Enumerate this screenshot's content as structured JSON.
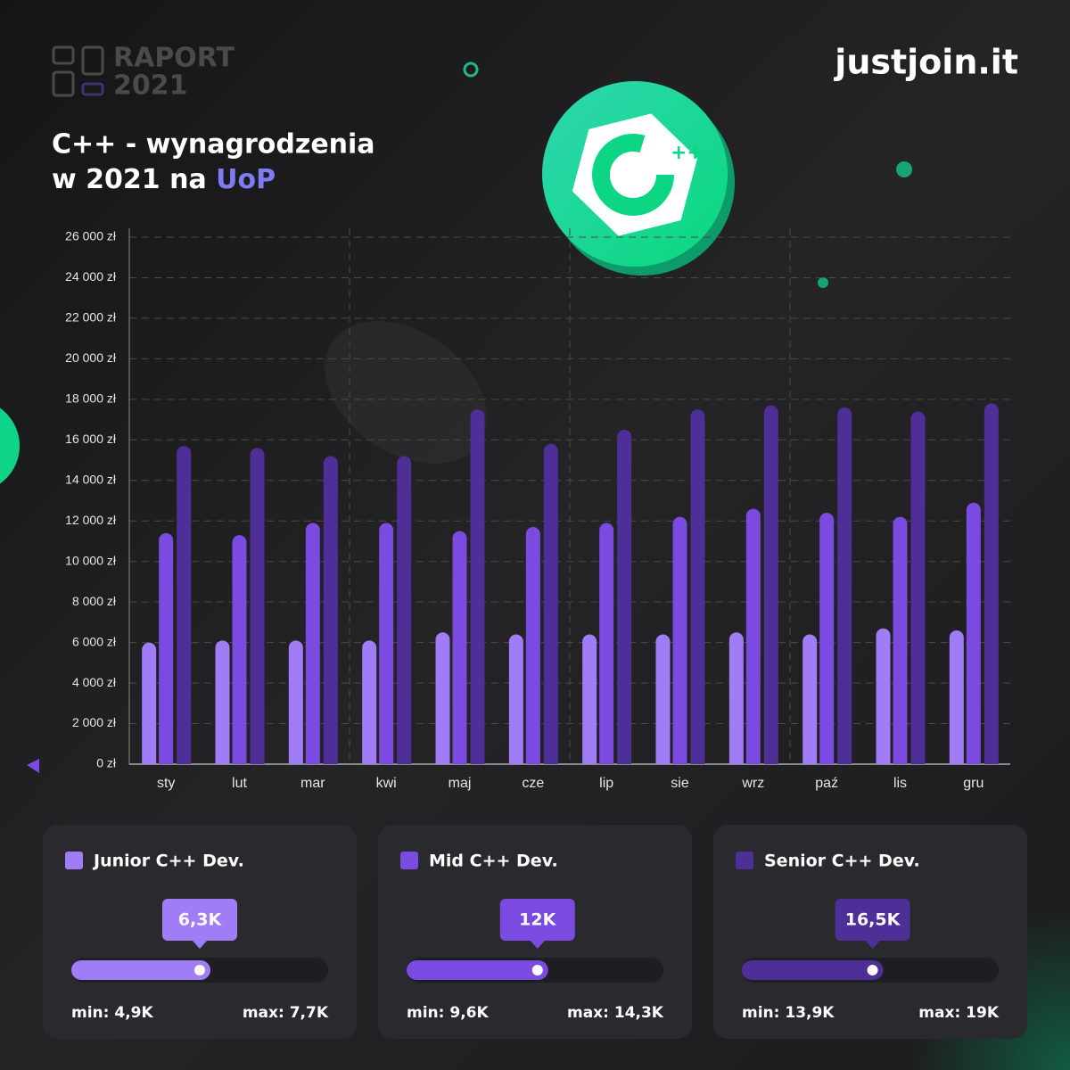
{
  "chart_data": {
    "type": "bar",
    "brand": "justjoin.it",
    "report_label": "RAPORT",
    "report_year": "2021",
    "title_line1": "C++ - wynagrodzenia",
    "title_line2": "w 2021 na",
    "title_highlight": "UoP",
    "categories": [
      "sty",
      "lut",
      "mar",
      "kwi",
      "maj",
      "cze",
      "lip",
      "sie",
      "wrz",
      "paź",
      "lis",
      "gru"
    ],
    "series": [
      {
        "name": "Junior C++ Dev.",
        "color": "#a07cf7",
        "values": [
          6000,
          6100,
          6100,
          6100,
          6500,
          6400,
          6400,
          6400,
          6500,
          6400,
          6700,
          6600
        ]
      },
      {
        "name": "Mid C++ Dev.",
        "color": "#7b4ae0",
        "values": [
          11400,
          11300,
          11900,
          11900,
          11500,
          11700,
          11900,
          12200,
          12600,
          12400,
          12200,
          12900
        ]
      },
      {
        "name": "Senior C++ Dev.",
        "color": "#4e2f97",
        "values": [
          15700,
          15600,
          15200,
          15200,
          17500,
          15800,
          16500,
          17500,
          17700,
          17600,
          17400,
          17800
        ]
      }
    ],
    "ylim": [
      0,
      26000
    ],
    "yticks": [
      {
        "value": 0,
        "label": "0 zł"
      },
      {
        "value": 2000,
        "label": "2 000 zł"
      },
      {
        "value": 4000,
        "label": "4 000 zł"
      },
      {
        "value": 6000,
        "label": "6 000 zł"
      },
      {
        "value": 8000,
        "label": "8 000 zł"
      },
      {
        "value": 10000,
        "label": "10 000 zł"
      },
      {
        "value": 12000,
        "label": "12 000 zł"
      },
      {
        "value": 14000,
        "label": "14 000 zł"
      },
      {
        "value": 16000,
        "label": "16 000 zł"
      },
      {
        "value": 18000,
        "label": "18 000 zł"
      },
      {
        "value": 20000,
        "label": "20 000 zł"
      },
      {
        "value": 22000,
        "label": "22 000 zł"
      },
      {
        "value": 24000,
        "label": "24 000 zł"
      },
      {
        "value": 26000,
        "label": "26 000 zł"
      }
    ],
    "grid": true,
    "summary": [
      {
        "value": 6300,
        "value_label": "6,3K",
        "min": 4900,
        "min_label": "min: 4,9K",
        "max": 7700,
        "max_label": "max: 7,7K"
      },
      {
        "value": 12000,
        "value_label": "12K",
        "min": 9600,
        "min_label": "min: 9,6K",
        "max": 14300,
        "max_label": "max: 14,3K"
      },
      {
        "value": 16500,
        "value_label": "16,5K",
        "min": 13900,
        "min_label": "min: 13,9K",
        "max": 19000,
        "max_label": "max: 19K"
      }
    ]
  }
}
